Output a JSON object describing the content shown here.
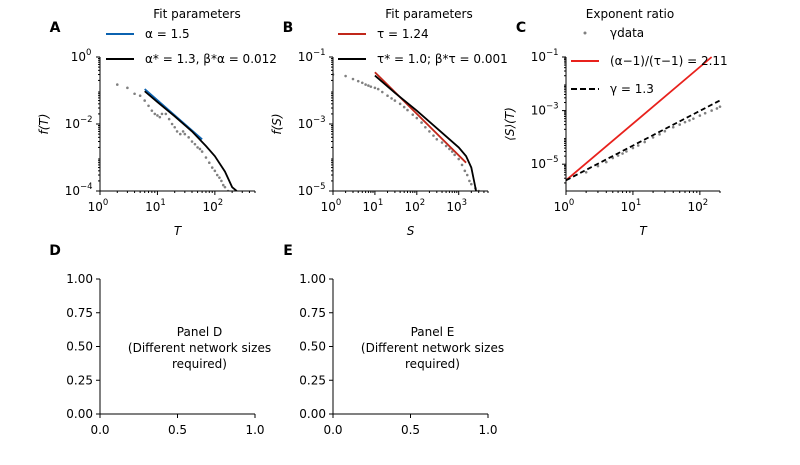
{
  "chart_data": [
    {
      "panel": "A",
      "type": "scatter",
      "log_x": true,
      "log_y": true,
      "xlim": [
        1,
        500
      ],
      "ylim": [
        0.0001,
        1
      ],
      "xlabel": "T",
      "ylabel": "f(T)",
      "xticks": [
        {
          "v": 1,
          "e": "0"
        },
        {
          "v": 10,
          "e": "1"
        },
        {
          "v": 100,
          "e": "2"
        }
      ],
      "yticks": [
        {
          "v": 0.0001,
          "e": "−4"
        },
        {
          "v": 0.01,
          "e": "−2"
        },
        {
          "v": 1,
          "e": "0"
        }
      ],
      "legend_title": "Fit parameters",
      "legend": [
        {
          "label": "α = 1.5",
          "color": "#0b62b0",
          "style": "solid"
        },
        {
          "label": "α* = 1.3, β*α = 0.012",
          "color": "#000000",
          "style": "solid"
        }
      ],
      "series": [
        {
          "kind": "points",
          "color": "#808080",
          "points": [
            [
              2,
              0.15
            ],
            [
              3,
              0.12
            ],
            [
              4,
              0.08
            ],
            [
              5,
              0.07
            ],
            [
              6,
              0.05
            ],
            [
              7,
              0.035
            ],
            [
              8,
              0.025
            ],
            [
              9,
              0.02
            ],
            [
              10,
              0.018
            ],
            [
              11,
              0.016
            ],
            [
              12,
              0.02
            ],
            [
              14,
              0.02
            ],
            [
              16,
              0.014
            ],
            [
              18,
              0.01
            ],
            [
              20,
              0.008
            ],
            [
              22,
              0.006
            ],
            [
              25,
              0.005
            ],
            [
              28,
              0.006
            ],
            [
              30,
              0.005
            ],
            [
              35,
              0.004
            ],
            [
              40,
              0.003
            ],
            [
              45,
              0.0025
            ],
            [
              50,
              0.002
            ],
            [
              55,
              0.0018
            ],
            [
              60,
              0.0015
            ],
            [
              70,
              0.001
            ],
            [
              80,
              0.0007
            ],
            [
              90,
              0.0005
            ],
            [
              100,
              0.0004
            ],
            [
              110,
              0.0003
            ],
            [
              120,
              0.00025
            ],
            [
              130,
              0.0002
            ],
            [
              140,
              0.00015
            ],
            [
              150,
              0.00013
            ],
            [
              170,
              0.0001
            ]
          ]
        },
        {
          "kind": "line",
          "color": "#0b62b0",
          "points": [
            [
              6,
              0.11
            ],
            [
              60,
              0.0035
            ]
          ]
        },
        {
          "kind": "line",
          "color": "#000000",
          "points": [
            [
              6,
              0.095
            ],
            [
              10,
              0.045
            ],
            [
              20,
              0.017
            ],
            [
              40,
              0.006
            ],
            [
              70,
              0.0022
            ],
            [
              100,
              0.0011
            ],
            [
              150,
              0.00038
            ],
            [
              200,
              0.00013
            ],
            [
              240,
              0.0001
            ]
          ]
        }
      ]
    },
    {
      "panel": "B",
      "type": "scatter",
      "log_x": true,
      "log_y": true,
      "xlim": [
        1,
        5000
      ],
      "ylim": [
        1e-05,
        0.1
      ],
      "xlabel": "S",
      "ylabel": "f(S)",
      "xticks": [
        {
          "v": 1,
          "e": "0"
        },
        {
          "v": 10,
          "e": "1"
        },
        {
          "v": 100,
          "e": "2"
        },
        {
          "v": 1000,
          "e": "3"
        }
      ],
      "yticks": [
        {
          "v": 1e-05,
          "e": "−5"
        },
        {
          "v": 0.001,
          "e": "−3"
        },
        {
          "v": 0.1,
          "e": "−1"
        }
      ],
      "legend_title": "Fit parameters",
      "legend": [
        {
          "label": "τ = 1.24",
          "color": "#c0271a",
          "style": "solid"
        },
        {
          "label": "τ* = 1.0; β*τ = 0.001",
          "color": "#000000",
          "style": "solid"
        }
      ],
      "series": [
        {
          "kind": "points",
          "color": "#808080",
          "points": [
            [
              1,
              0.03
            ],
            [
              2,
              0.027
            ],
            [
              3,
              0.022
            ],
            [
              4,
              0.019
            ],
            [
              5,
              0.017
            ],
            [
              6,
              0.015
            ],
            [
              7,
              0.014
            ],
            [
              8,
              0.013
            ],
            [
              10,
              0.012
            ],
            [
              12,
              0.011
            ],
            [
              15,
              0.009
            ],
            [
              20,
              0.007
            ],
            [
              25,
              0.0058
            ],
            [
              30,
              0.005
            ],
            [
              40,
              0.004
            ],
            [
              50,
              0.0032
            ],
            [
              60,
              0.0026
            ],
            [
              80,
              0.0019
            ],
            [
              100,
              0.0015
            ],
            [
              130,
              0.0011
            ],
            [
              160,
              0.0008
            ],
            [
              200,
              0.0006
            ],
            [
              250,
              0.00045
            ],
            [
              300,
              0.00035
            ],
            [
              400,
              0.00028
            ],
            [
              500,
              0.00022
            ],
            [
              600,
              0.00018
            ],
            [
              700,
              0.00015
            ],
            [
              800,
              0.00012
            ],
            [
              1000,
              9e-05
            ],
            [
              1200,
              6e-05
            ],
            [
              1400,
              4e-05
            ],
            [
              1600,
              3e-05
            ],
            [
              1800,
              2e-05
            ],
            [
              2000,
              1.6e-05
            ],
            [
              2500,
              1.2e-05
            ],
            [
              3000,
              1e-05
            ]
          ]
        },
        {
          "kind": "line",
          "color": "#c0271a",
          "points": [
            [
              10,
              0.035
            ],
            [
              1500,
              7e-05
            ]
          ]
        },
        {
          "kind": "line",
          "color": "#000000",
          "points": [
            [
              10,
              0.028
            ],
            [
              30,
              0.0085
            ],
            [
              100,
              0.0025
            ],
            [
              300,
              0.00075
            ],
            [
              1000,
              0.0002
            ],
            [
              1500,
              0.00011
            ],
            [
              2000,
              5e-05
            ],
            [
              2600,
              1e-05
            ]
          ]
        }
      ]
    },
    {
      "panel": "C",
      "type": "scatter",
      "log_x": true,
      "log_y": true,
      "xlim": [
        1,
        200
      ],
      "ylim": [
        1e-06,
        0.1
      ],
      "xlabel": "T",
      "ylabel": "⟨S⟩(T)",
      "xticks": [
        {
          "v": 1,
          "e": "0"
        },
        {
          "v": 10,
          "e": "1"
        },
        {
          "v": 100,
          "e": "2"
        }
      ],
      "yticks": [
        {
          "v": 1e-05,
          "e": "−5"
        },
        {
          "v": 0.001,
          "e": "−3"
        },
        {
          "v": 0.1,
          "e": "−1"
        }
      ],
      "legend_title": "Exponent ratio",
      "legend": [
        {
          "label": "γdata",
          "color": "#808080",
          "style": "dot"
        },
        {
          "label": "(α−1)/(τ−1) = 2.11",
          "color": "#e8211c",
          "style": "solid"
        },
        {
          "label": "γ = 1.3",
          "color": "#000000",
          "style": "dashed"
        }
      ],
      "series": [
        {
          "kind": "points",
          "color": "#808080",
          "points": [
            [
              2,
              5e-06
            ],
            [
              3,
              8.5e-06
            ],
            [
              4,
              1.2e-05
            ],
            [
              5,
              1.7e-05
            ],
            [
              6,
              2.1e-05
            ],
            [
              7,
              2.5e-05
            ],
            [
              8,
              3e-05
            ],
            [
              10,
              4e-05
            ],
            [
              12,
              5e-05
            ],
            [
              15,
              6.7e-05
            ],
            [
              20,
              0.0001
            ],
            [
              25,
              0.00013
            ],
            [
              30,
              0.00017
            ],
            [
              40,
              0.00024
            ],
            [
              50,
              0.0003
            ],
            [
              60,
              0.00037
            ],
            [
              70,
              0.00043
            ],
            [
              80,
              0.0005
            ],
            [
              100,
              0.00065
            ],
            [
              120,
              0.0008
            ],
            [
              150,
              0.001
            ],
            [
              180,
              0.0012
            ],
            [
              200,
              0.0014
            ]
          ]
        },
        {
          "kind": "line",
          "color": "#e8211c",
          "points": [
            [
              1,
              2.5e-06
            ],
            [
              150,
              0.1
            ]
          ]
        },
        {
          "kind": "line",
          "color": "#000000",
          "dashed": true,
          "points": [
            [
              1,
              2.5e-06
            ],
            [
              200,
              0.0024
            ]
          ]
        }
      ]
    },
    {
      "panel": "D",
      "type": "placeholder",
      "xlim": [
        0,
        1
      ],
      "ylim": [
        0,
        1
      ],
      "xticks": [
        "0.0",
        "0.5",
        "1.0"
      ],
      "yticks": [
        "0.00",
        "0.25",
        "0.50",
        "0.75",
        "1.00"
      ],
      "note": [
        "Panel D",
        "(Different network sizes",
        "required)"
      ]
    },
    {
      "panel": "E",
      "type": "placeholder",
      "xlim": [
        0,
        1
      ],
      "ylim": [
        0,
        1
      ],
      "xticks": [
        "0.0",
        "0.5",
        "1.0"
      ],
      "yticks": [
        "0.00",
        "0.25",
        "0.50",
        "0.75",
        "1.00"
      ],
      "note": [
        "Panel E",
        "(Different network sizes",
        "required)"
      ]
    }
  ]
}
